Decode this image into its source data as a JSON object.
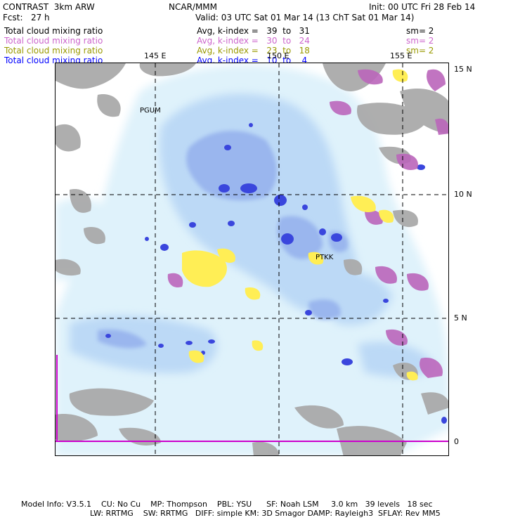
{
  "header": {
    "left_title": "CONTRAST  3km ARW",
    "center_title": "NCAR/MMM",
    "init": "Init: 00 UTC Fri 28 Feb 14",
    "fcst": "Fcst:   27 h",
    "valid": "Valid: 03 UTC Sat 01 Mar 14 (13 ChT Sat 01 Mar 14)"
  },
  "fields": [
    {
      "name": "Total cloud mixing ratio",
      "stat": "Avg, k-index =   39  to   31",
      "sm": "sm= 2",
      "color": "#000000"
    },
    {
      "name": "Total cloud mixing ratio",
      "stat": "Avg, k-index =   30  to   24",
      "sm": "sm= 2",
      "color": "#cc66cc"
    },
    {
      "name": "Total cloud mixing ratio",
      "stat": "Avg, k-index =   23  to   18",
      "sm": "sm= 2",
      "color": "#999900"
    },
    {
      "name": "Total cloud mixing ratio",
      "stat": "Avg, k-index =   10  to    4",
      "sm": "",
      "color": "#0000ff"
    }
  ],
  "map": {
    "lon_labels": [
      "145 E",
      "150 E",
      "155 E"
    ],
    "lat_labels": [
      "15 N",
      "10 N",
      "5 N",
      "0"
    ],
    "stations": [
      "PGUM",
      "PTKK"
    ],
    "colors": {
      "grey": "#aaaaaa",
      "purple": "#bb66bb",
      "yellow": "#ffee55",
      "light_blue": "#dff2fb",
      "mid_blue": "#bcd9f6",
      "blue": "#9ab6ee",
      "deep_blue": "#3a46dd"
    }
  },
  "footer": {
    "line1": "Model Info: V3.5.1    CU: No Cu    MP: Thompson    PBL: YSU      SF: Noah LSM     3.0 km   39 levels   18 sec",
    "line2": "LW: RRTMG    SW: RRTMG   DIFF: simple KM: 3D Smagor DAMP: Rayleigh3  SFLAY: Rev MM5"
  }
}
